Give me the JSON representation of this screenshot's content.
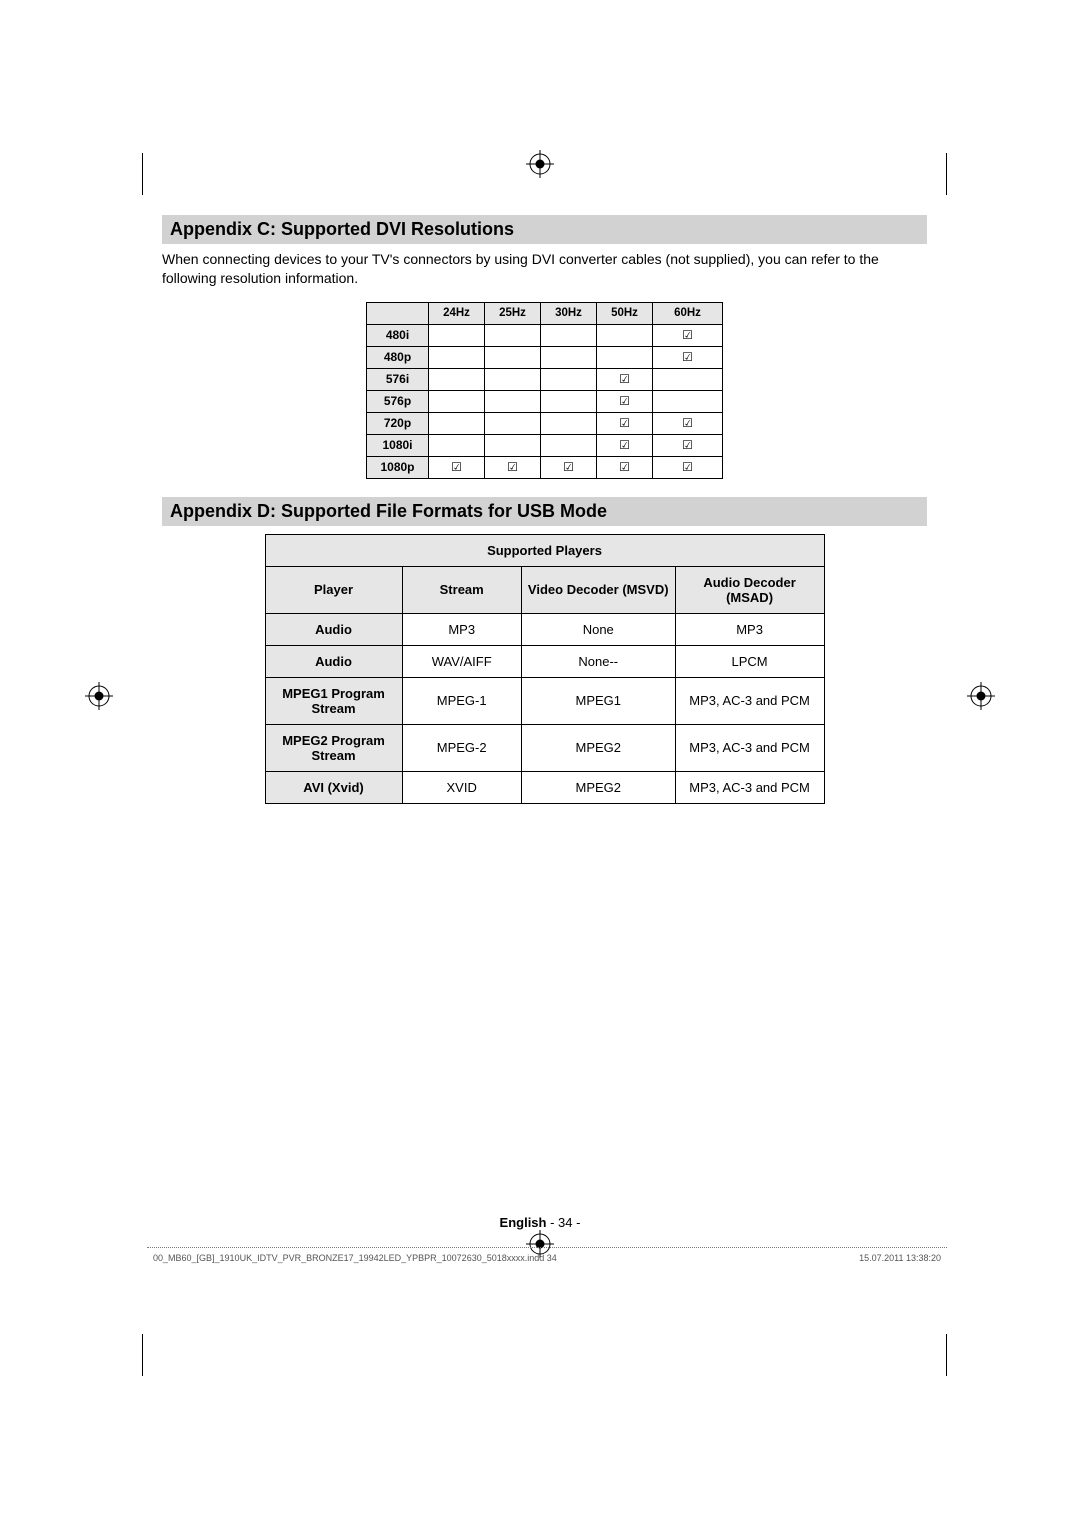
{
  "appendixC": {
    "heading": "Appendix C: Supported DVI Resolutions",
    "intro": "When connecting devices to your TV's connectors by using DVI converter cables (not supplied), you can refer to the following resolution information.",
    "freq_headers": [
      "24Hz",
      "25Hz",
      "30Hz",
      "50Hz",
      "60Hz"
    ],
    "rows": [
      {
        "label": "480i",
        "cells": [
          "",
          "",
          "",
          "",
          "☑"
        ]
      },
      {
        "label": "480p",
        "cells": [
          "",
          "",
          "",
          "",
          "☑"
        ]
      },
      {
        "label": "576i",
        "cells": [
          "",
          "",
          "",
          "☑",
          ""
        ]
      },
      {
        "label": "576p",
        "cells": [
          "",
          "",
          "",
          "☑",
          ""
        ]
      },
      {
        "label": "720p",
        "cells": [
          "",
          "",
          "",
          "☑",
          "☑"
        ]
      },
      {
        "label": "1080i",
        "cells": [
          "",
          "",
          "",
          "☑",
          "☑"
        ]
      },
      {
        "label": "1080p",
        "cells": [
          "☑",
          "☑",
          "☑",
          "☑",
          "☑"
        ]
      }
    ]
  },
  "appendixD": {
    "heading": "Appendix D: Supported File Formats for USB Mode",
    "table_title": "Supported Players",
    "columns": [
      "Player",
      "Stream",
      "Video Decoder (MSVD)",
      "Audio Decoder (MSAD)"
    ],
    "rows": [
      {
        "player": "Audio",
        "stream": "MP3",
        "vdec": "None",
        "adec": "MP3",
        "tall": false
      },
      {
        "player": "Audio",
        "stream": "WAV/AIFF",
        "vdec": "None--",
        "adec": "LPCM",
        "tall": false
      },
      {
        "player": "MPEG1 Program Stream",
        "stream": "MPEG-1",
        "vdec": "MPEG1",
        "adec": "MP3, AC-3 and PCM",
        "tall": true
      },
      {
        "player": "MPEG2 Program Stream",
        "stream": "MPEG-2",
        "vdec": "MPEG2",
        "adec": "MP3, AC-3 and PCM",
        "tall": true
      },
      {
        "player": "AVI (Xvid)",
        "stream": "XVID",
        "vdec": "MPEG2",
        "adec": "MP3, AC-3 and PCM",
        "tall": false
      }
    ]
  },
  "footer": {
    "language": "English",
    "page_sep": "   - ",
    "page_num": "34 -"
  },
  "print": {
    "file": "00_MB60_[GB]_1910UK_IDTV_PVR_BRONZE17_19942LED_YPBPR_10072630_5018xxxx.indd   34",
    "datetime": "15.07.2011   13:38:20"
  },
  "styling": {
    "heading_bg": "#d2d2d2",
    "table_header_bg": "#e6e6e6",
    "border_color": "#000000",
    "body_font_family": "Arial, Helvetica, sans-serif"
  }
}
